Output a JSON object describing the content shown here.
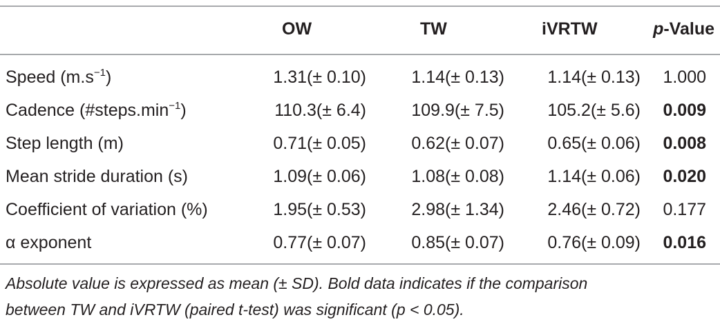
{
  "table": {
    "headers": {
      "label": "",
      "ow": "OW",
      "tw": "TW",
      "ivrtw": "iVRTW",
      "p_italic": "p",
      "p_rest": "-Value"
    },
    "rows": [
      {
        "label_main": "Speed (m.s",
        "label_sup": "−1",
        "label_tail": ")",
        "ow": "1.31(± 0.10)",
        "tw": "1.14(± 0.13)",
        "ivrtw": "1.14(± 0.13)",
        "p": "1.000",
        "p_bold": false
      },
      {
        "label_main": "Cadence (#steps.min",
        "label_sup": "−1",
        "label_tail": ")",
        "ow": "110.3(± 6.4)",
        "tw": "109.9(± 7.5)",
        "ivrtw": "105.2(± 5.6)",
        "p": "0.009",
        "p_bold": true
      },
      {
        "label_main": "Step length (m)",
        "label_sup": "",
        "label_tail": "",
        "ow": "0.71(± 0.05)",
        "tw": "0.62(± 0.07)",
        "ivrtw": "0.65(± 0.06)",
        "p": "0.008",
        "p_bold": true
      },
      {
        "label_main": "Mean stride duration (s)",
        "label_sup": "",
        "label_tail": "",
        "ow": "1.09(± 0.06)",
        "tw": "1.08(± 0.08)",
        "ivrtw": "1.14(± 0.06)",
        "p": "0.020",
        "p_bold": true
      },
      {
        "label_main": "Coefficient of variation (%)",
        "label_sup": "",
        "label_tail": "",
        "ow": "1.95(± 0.53)",
        "tw": "2.98(± 1.34)",
        "ivrtw": "2.46(± 0.72)",
        "p": "0.177",
        "p_bold": false
      },
      {
        "label_main": "α exponent",
        "label_sup": "",
        "label_tail": "",
        "ow": "0.77(± 0.07)",
        "tw": "0.85(± 0.07)",
        "ivrtw": "0.76(± 0.09)",
        "p": "0.016",
        "p_bold": true
      }
    ],
    "footnote_line1": "Absolute value is expressed as mean (± SD). Bold data indicates if the comparison",
    "footnote_line2": "between TW and iVRTW (paired t-test) was significant (p < 0.05)."
  }
}
